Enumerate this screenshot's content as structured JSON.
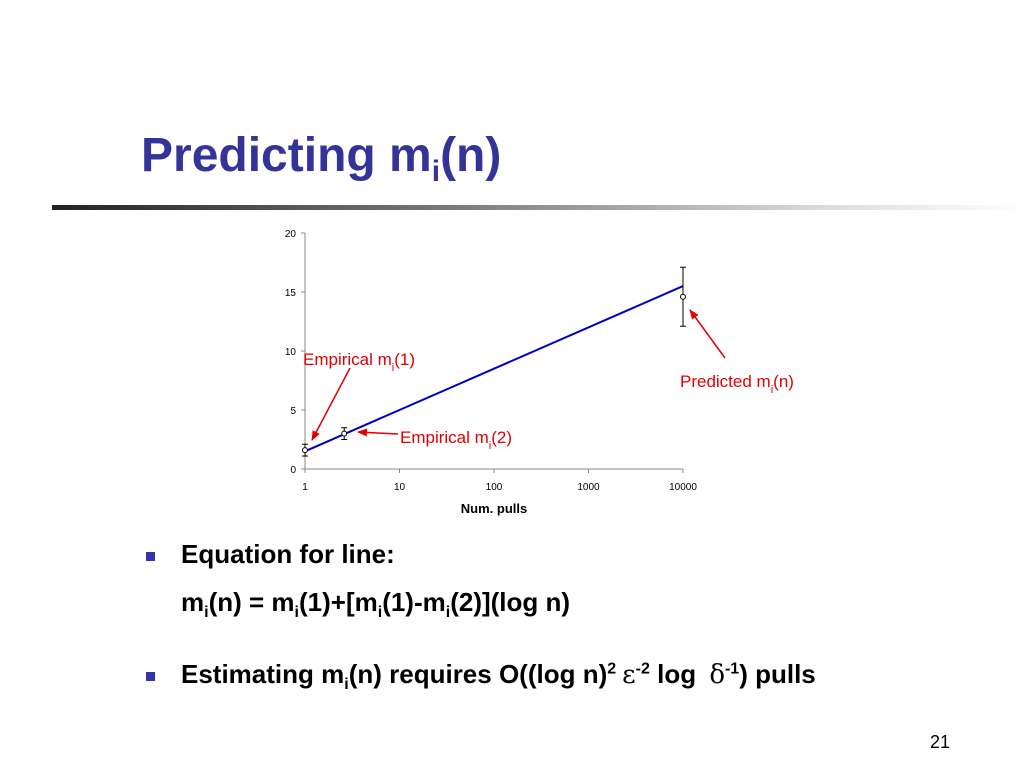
{
  "title": [
    "Predicting m",
    {
      "sub": "i"
    },
    "(n)"
  ],
  "chart_data": {
    "type": "scatter",
    "xscale": "log",
    "xlim": [
      1,
      10000
    ],
    "xticks": [
      1,
      10,
      100,
      1000,
      10000
    ],
    "ylim": [
      0,
      20
    ],
    "yticks": [
      0,
      5,
      10,
      15,
      20
    ],
    "xlabel": "Num. pulls",
    "series": [
      {
        "color": "#000000",
        "x": [
          1,
          2.6,
          10000
        ],
        "values": [
          1.6,
          3,
          14.6
        ],
        "errors": [
          0.5,
          0.5,
          2.5
        ]
      }
    ],
    "fit": {
      "color": "#0000c0",
      "x": [
        1,
        10000
      ],
      "values": [
        1.5,
        15.5
      ]
    },
    "annotation_color": "#e00000",
    "annotations": [
      [
        "Empirical m",
        {
          "sub": "i"
        },
        "(1)"
      ],
      [
        "Empirical m",
        {
          "sub": "i"
        },
        "(2)"
      ],
      [
        "Predicted m",
        {
          "sub": "i"
        },
        "(n)"
      ]
    ]
  },
  "bullets": [
    [
      [
        "Equation for line:"
      ],
      [
        "m",
        {
          "sub": "i"
        },
        "(n) = m",
        {
          "sub": "i"
        },
        "(1)+[m",
        {
          "sub": "i"
        },
        "(1)-m",
        {
          "sub": "i"
        },
        "(2)](log n)"
      ]
    ],
    [
      [
        "Estimating m",
        {
          "sub": "i"
        },
        "(n) requires O((log n)",
        {
          "sup": "2"
        },
        {
          "sym": "ε"
        },
        {
          "sup": "-2"
        },
        " log ",
        {
          "sym": "δ"
        },
        {
          "sup": "-1"
        },
        ") pulls"
      ]
    ]
  ],
  "page_number": "21"
}
